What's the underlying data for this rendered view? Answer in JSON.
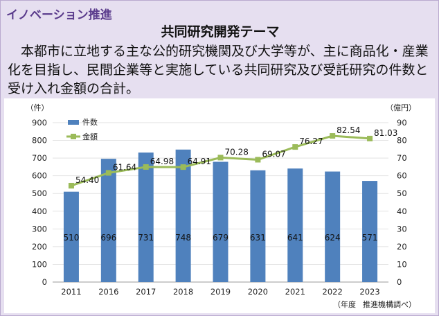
{
  "section_title": "イノベーション推進",
  "theme_title": "共同研究開発テーマ",
  "description": "本都市に立地する主な公的研究機関及び大学等が、主に商品化・産業化を目指し、民間企業等と実施している共同研究及び受託研究の件数と受け入れ金額の合計。",
  "chart_data": {
    "type": "bar+line",
    "categories": [
      "2011",
      "2016",
      "2017",
      "2018",
      "2019",
      "2020",
      "2021",
      "2022",
      "2023"
    ],
    "series": [
      {
        "name": "件数",
        "type": "bar",
        "axis": "left",
        "color": "#4f81bd",
        "values": [
          510,
          696,
          731,
          748,
          679,
          631,
          641,
          624,
          571
        ]
      },
      {
        "name": "金額",
        "type": "line",
        "axis": "right",
        "color": "#9bbb59",
        "values": [
          54.4,
          61.64,
          64.98,
          64.91,
          70.28,
          69.07,
          76.27,
          82.54,
          81.03
        ],
        "labels": [
          "54.40",
          "61.64",
          "64.98",
          "64.91",
          "70.28",
          "69.07",
          "76.27",
          "82.54",
          "81.03"
        ]
      }
    ],
    "left_axis": {
      "unit": "（件）",
      "min": 0,
      "max": 900,
      "step": 100
    },
    "right_axis": {
      "unit": "（億円）",
      "min": 0,
      "max": 90,
      "step": 10
    },
    "x_unit": "（年度",
    "source": "推進機構調べ）",
    "legend": [
      "件数",
      "金額"
    ]
  }
}
